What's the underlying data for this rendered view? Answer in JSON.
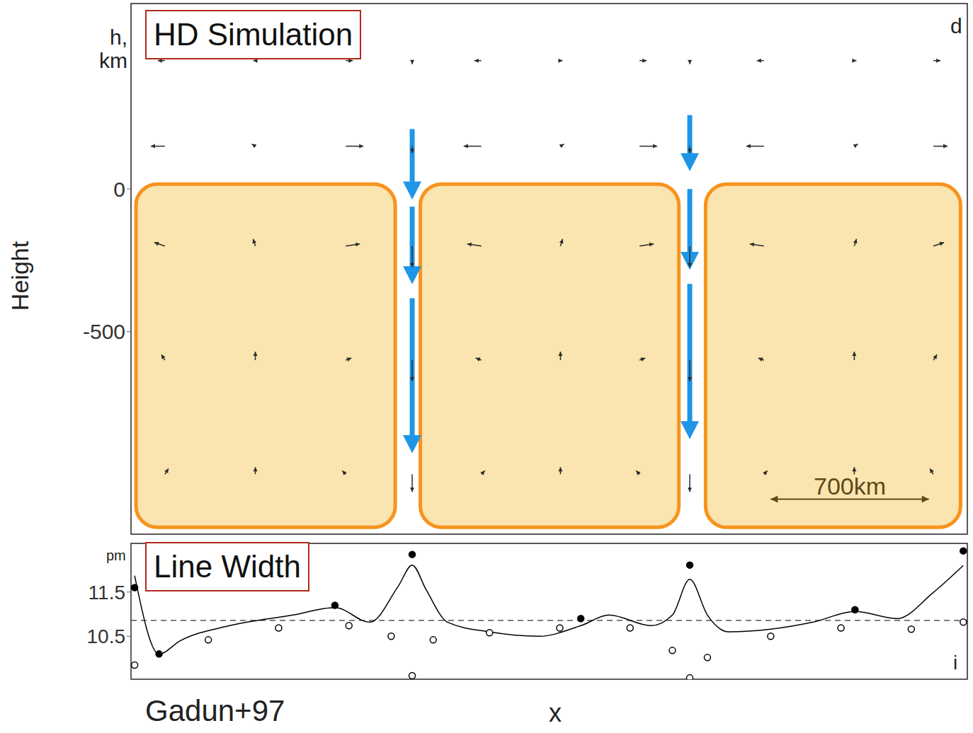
{
  "figure": {
    "ylabel": "Height",
    "xlabel": "x",
    "source": "Gadun+97"
  },
  "chart_data": [
    {
      "type": "vector_field",
      "title": "HD Simulation",
      "panel": "d",
      "ylabel": "h, km",
      "xlim": [
        0,
        3700
      ],
      "ylim": [
        -1210,
        650
      ],
      "yticks": [
        -500,
        0
      ],
      "tick_labels": "y",
      "velocity": {
        "x": [
          150,
          550,
          950,
          1244,
          1550,
          1900,
          2250,
          2472,
          2800,
          3200,
          3550
        ],
        "h": [
          450,
          150,
          -200,
          -600,
          -1000
        ],
        "u": [
          [
            -1,
            -0.3,
            1,
            0,
            -1,
            0.3,
            1,
            0,
            -1,
            0.3,
            1
          ],
          [
            -2,
            -0.5,
            2.5,
            0,
            -2.5,
            0.5,
            2.5,
            0,
            -2.5,
            0.5,
            2
          ],
          [
            -1.5,
            -0.3,
            2,
            0,
            -2,
            0.3,
            2,
            0,
            -2,
            0.3,
            1.5
          ],
          [
            -0.5,
            0,
            0.8,
            0,
            -0.8,
            0,
            0.8,
            0,
            -0.8,
            0,
            0.5
          ],
          [
            0.5,
            0,
            -0.5,
            0,
            0.5,
            0,
            -0.5,
            0,
            0.5,
            0,
            -0.5
          ]
        ],
        "v": [
          [
            0,
            0,
            0,
            -0.5,
            0,
            0,
            0,
            -0.5,
            0,
            0,
            0
          ],
          [
            0,
            0.3,
            0,
            -1,
            0,
            0.3,
            0,
            -1,
            0,
            0.3,
            0
          ],
          [
            0.5,
            1,
            0.3,
            -3,
            0.3,
            1,
            0.3,
            -3,
            0.3,
            1,
            0.5
          ],
          [
            0.8,
            1.2,
            0.3,
            -3,
            0.3,
            1.2,
            0.3,
            -3,
            0.3,
            1.2,
            0.8
          ],
          [
            0.8,
            1,
            0.5,
            -2.5,
            0.5,
            1,
            0.5,
            -2.5,
            0.5,
            1,
            0.8
          ]
        ]
      },
      "granules": [
        {
          "x": [
            22,
            1169
          ],
          "y": [
            -1186,
            17
          ],
          "color": "#f7931e"
        },
        {
          "x": [
            1280,
            2424
          ],
          "y": [
            -1186,
            17
          ],
          "color": "#f7931e"
        },
        {
          "x": [
            2542,
            3670
          ],
          "y": [
            -1186,
            17
          ],
          "color": "#f7931e"
        }
      ],
      "downflows": [
        {
          "x": 1244,
          "segments": [
            [
              210,
              -37
            ],
            [
              -62,
              -334
            ],
            [
              -383,
              -926
            ]
          ],
          "color": "#1e96e8"
        },
        {
          "x": 2472,
          "segments": [
            [
              259,
              62
            ],
            [
              0,
              -284
            ],
            [
              -333,
              -877
            ]
          ],
          "color": "#1e96e8"
        }
      ],
      "scale_bar": {
        "x": [
          2830,
          3530
        ],
        "y": -1087,
        "label": "700km"
      }
    },
    {
      "type": "line",
      "title": "Line Width",
      "panel": "i",
      "ylabel": "pm",
      "xlim": [
        0,
        3700
      ],
      "ylim": [
        9.53,
        12.6
      ],
      "yticks": [
        10.5,
        11.5
      ],
      "tick_labels": "y",
      "dashed_level": 10.86,
      "series": [
        {
          "line_style": "solid",
          "marker": "none",
          "color": "#000000",
          "x": [
            16,
            124,
            218,
            435,
            715,
            902,
            1057,
            1182,
            1244,
            1306,
            1400,
            1586,
            1804,
            1990,
            2115,
            2301,
            2395,
            2472,
            2550,
            2644,
            2830,
            3017,
            3203,
            3390,
            3545,
            3682
          ],
          "values": [
            11.87,
            10.1,
            10.4,
            10.74,
            10.98,
            11.15,
            10.82,
            11.63,
            12.11,
            11.55,
            10.82,
            10.6,
            10.5,
            10.74,
            10.98,
            10.74,
            10.98,
            11.79,
            10.98,
            10.6,
            10.66,
            10.82,
            11.06,
            10.9,
            11.47,
            12.1
          ]
        },
        {
          "line_style": "none",
          "marker": "filled_circle",
          "color": "#000000",
          "x": [
            16,
            124,
            902,
            1244,
            1990,
            2472,
            3203,
            3682
          ],
          "values": [
            11.6,
            10.1,
            11.2,
            12.35,
            10.9,
            12.11,
            11.1,
            12.43
          ]
        },
        {
          "line_style": "none",
          "marker": "open_circle",
          "color": "#000000",
          "x": [
            16,
            342,
            653,
            964,
            1151,
            1244,
            1337,
            1586,
            1897,
            2208,
            2395,
            2472,
            2550,
            2830,
            3141,
            3452,
            3682
          ],
          "values": [
            9.85,
            10.42,
            10.69,
            10.74,
            10.5,
            9.61,
            10.42,
            10.58,
            10.69,
            10.69,
            10.18,
            9.56,
            10.02,
            10.5,
            10.69,
            10.66,
            10.82
          ]
        }
      ]
    }
  ]
}
